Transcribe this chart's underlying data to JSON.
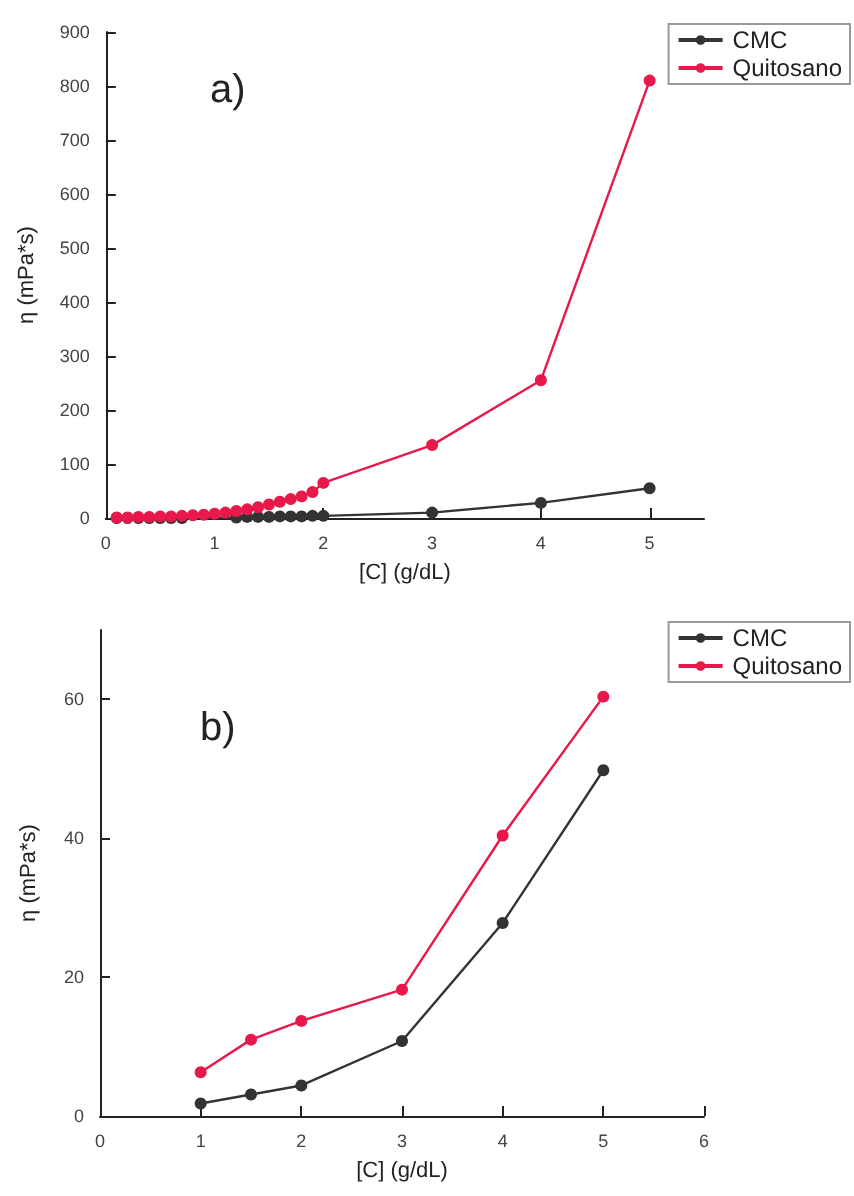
{
  "chart_data": [
    {
      "type": "line",
      "title": "a)",
      "xlabel": "[C] (g/dL)",
      "ylabel": "η (mPa*s)",
      "xlim": [
        0,
        5.5
      ],
      "xticks": [
        0,
        1,
        2,
        3,
        4,
        5
      ],
      "ylim": [
        0,
        900
      ],
      "yticks": [
        0,
        100,
        200,
        300,
        400,
        500,
        600,
        700,
        800,
        900
      ],
      "grid": false,
      "legend": "top right",
      "marker": "circle",
      "line_style": "solid",
      "series": [
        {
          "name": "CMC",
          "color": "#333333",
          "x": [
            0.1,
            0.2,
            0.3,
            0.4,
            0.5,
            0.6,
            0.7,
            0.8,
            0.9,
            1,
            1.1,
            1.2,
            1.3,
            1.4,
            1.5,
            1.6,
            1.7,
            1.8,
            1.9,
            2,
            3,
            4,
            5
          ],
          "values": [
            0,
            0,
            0,
            0,
            0,
            0,
            0,
            null,
            null,
            null,
            null,
            1,
            2,
            2,
            2,
            3,
            3,
            3,
            4,
            4,
            10,
            28,
            55
          ]
        },
        {
          "name": "Quitosano",
          "color": "#e8194a",
          "x": [
            0.1,
            0.2,
            0.3,
            0.4,
            0.5,
            0.6,
            0.7,
            0.8,
            0.9,
            1,
            1.1,
            1.2,
            1.3,
            1.4,
            1.5,
            1.6,
            1.7,
            1.8,
            1.9,
            2,
            3,
            4,
            5
          ],
          "values": [
            1,
            1,
            2,
            2,
            3,
            3,
            4,
            5,
            6,
            8,
            10,
            13,
            16,
            20,
            25,
            30,
            35,
            40,
            48,
            65,
            135,
            255,
            810
          ]
        }
      ]
    },
    {
      "type": "line",
      "title": "b)",
      "xlabel": "[C] (g/dL)",
      "ylabel": "η (mPa*s)",
      "xlim": [
        0,
        6
      ],
      "xticks": [
        0,
        1,
        2,
        3,
        4,
        5,
        6
      ],
      "ylim": [
        0,
        70
      ],
      "yticks": [
        0,
        20,
        40,
        60
      ],
      "grid": false,
      "legend": "top right",
      "marker": "circle",
      "line_style": "solid",
      "series": [
        {
          "name": "CMC",
          "color": "#333333",
          "x": [
            1,
            1.5,
            2,
            3,
            4,
            5
          ],
          "values": [
            1.8,
            3.1,
            4.4,
            10.8,
            27.8,
            49.8
          ]
        },
        {
          "name": "Quitosano",
          "color": "#e8194a",
          "x": [
            1,
            1.5,
            2,
            3,
            4,
            5
          ],
          "values": [
            6.3,
            11,
            13.7,
            18.2,
            40.4,
            60.4
          ]
        }
      ]
    }
  ]
}
